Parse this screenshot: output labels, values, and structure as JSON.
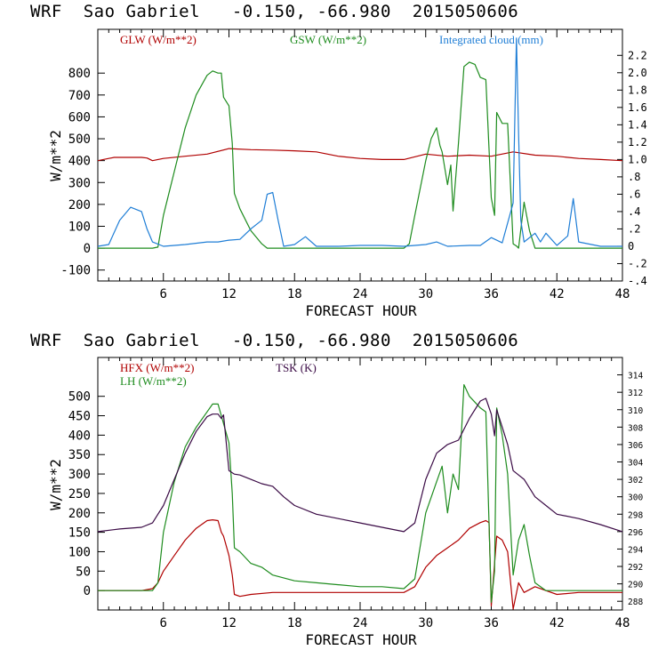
{
  "colors": {
    "red": "#b00000",
    "green": "#1e8c1e",
    "blue": "#1f7ed6",
    "purple": "#3a0a45",
    "axis": "#000000"
  },
  "top_title": "WRF  Sao Gabriel   -0.150, -66.980  2015050606",
  "bottom_title": "WRF  Sao Gabriel   -0.150, -66.980  2015050606",
  "chart_data": [
    {
      "type": "line",
      "title": "WRF  Sao Gabriel   -0.150, -66.980  2015050606",
      "xlabel": "FORECAST HOUR",
      "ylabel": "W/m**2",
      "y2label": "",
      "xlim": [
        0,
        48
      ],
      "ylim": [
        -150,
        1000
      ],
      "y2lim": [
        -0.4,
        2.5
      ],
      "xticks": [
        6,
        12,
        18,
        24,
        30,
        36,
        42,
        48
      ],
      "xtick_labels": [
        "6",
        "12",
        "18",
        "24",
        "30",
        "36",
        "42",
        "48"
      ],
      "yticks": [
        -100,
        0,
        100,
        200,
        300,
        400,
        500,
        600,
        700,
        800
      ],
      "ytick_labels": [
        "-100",
        "0",
        "100",
        "200",
        "300",
        "400",
        "500",
        "600",
        "700",
        "800"
      ],
      "y2ticks": [
        -0.4,
        -0.2,
        0,
        0.2,
        0.4,
        0.6,
        0.8,
        1.0,
        1.2,
        1.4,
        1.6,
        1.8,
        2.0,
        2.2
      ],
      "y2tick_labels": [
        "-.4",
        "-.2",
        "0",
        ".2",
        ".4",
        ".6",
        ".8",
        "1.0",
        "1.2",
        "1.4",
        "1.6",
        "1.8",
        "2.0",
        "2.2"
      ],
      "series": [
        {
          "name": "GLW (W/m**2)",
          "axis": "left",
          "color": "red",
          "x": [
            0,
            0.5,
            1,
            1.5,
            2,
            3,
            4,
            4.5,
            5,
            5.5,
            6,
            8,
            10,
            12,
            14,
            16,
            18,
            20,
            22,
            24,
            26,
            28,
            30,
            32,
            34,
            36,
            38,
            40,
            42,
            44,
            46,
            48
          ],
          "values": [
            400,
            405,
            410,
            415,
            415,
            415,
            415,
            412,
            400,
            405,
            410,
            420,
            430,
            455,
            450,
            448,
            445,
            440,
            420,
            410,
            405,
            405,
            430,
            420,
            425,
            420,
            440,
            425,
            420,
            410,
            405,
            400
          ]
        },
        {
          "name": "GSW (W/m**2)",
          "axis": "left",
          "color": "green",
          "x": [
            0,
            4,
            5,
            5.5,
            6,
            7,
            8,
            9,
            10,
            10.5,
            11,
            11.3,
            11.5,
            12,
            12.3,
            12.5,
            13,
            14,
            15,
            15.5,
            16,
            18,
            20,
            22,
            24,
            26,
            28,
            28.5,
            29,
            30,
            30.5,
            31,
            31.3,
            31.5,
            32,
            32.3,
            32.5,
            33,
            33.5,
            34,
            34.5,
            35,
            35.5,
            36,
            36.3,
            36.5,
            37,
            37.5,
            38,
            38.3,
            38.5,
            39,
            39.5,
            40,
            41,
            42,
            44,
            46,
            48
          ],
          "values": [
            0,
            0,
            0,
            5,
            150,
            350,
            550,
            700,
            790,
            810,
            800,
            800,
            690,
            650,
            480,
            250,
            180,
            80,
            20,
            0,
            0,
            0,
            0,
            0,
            0,
            0,
            0,
            20,
            150,
            400,
            500,
            550,
            470,
            440,
            290,
            380,
            170,
            480,
            830,
            850,
            840,
            780,
            770,
            230,
            150,
            620,
            570,
            570,
            20,
            10,
            0,
            210,
            80,
            0,
            0,
            0,
            0,
            0,
            0
          ]
        },
        {
          "name": "Integrated cloud (mm)",
          "axis": "right",
          "color": "blue",
          "x": [
            0,
            1,
            2,
            3,
            4,
            4.5,
            5,
            6,
            8,
            10,
            11,
            12,
            13,
            14,
            15,
            15.5,
            16,
            16.5,
            17,
            18,
            19,
            20,
            22,
            24,
            26,
            28,
            30,
            31,
            32,
            34,
            35,
            36,
            37,
            38,
            38.3,
            38.5,
            38.7,
            39,
            40,
            40.5,
            41,
            42,
            43,
            43.5,
            44,
            46,
            48
          ],
          "values": [
            0,
            0.02,
            0.3,
            0.45,
            0.4,
            0.2,
            0.05,
            0,
            0.02,
            0.05,
            0.05,
            0.07,
            0.08,
            0.2,
            0.3,
            0.6,
            0.62,
            0.3,
            0,
            0.02,
            0.11,
            0,
            0,
            0.01,
            0.01,
            0,
            0.02,
            0.05,
            0,
            0.01,
            0.01,
            0.1,
            0.04,
            0.5,
            2.4,
            1.3,
            0.3,
            0.05,
            0.15,
            0.05,
            0.15,
            0.01,
            0.12,
            0.55,
            0.05,
            0,
            0
          ]
        }
      ]
    },
    {
      "type": "line",
      "title": "WRF  Sao Gabriel   -0.150, -66.980  2015050606",
      "xlabel": "FORECAST HOUR",
      "ylabel": "W/m**2",
      "xlim": [
        0,
        48
      ],
      "ylim": [
        -50,
        600
      ],
      "y2lim": [
        287,
        316
      ],
      "xticks": [
        6,
        12,
        18,
        24,
        30,
        36,
        42,
        48
      ],
      "xtick_labels": [
        "6",
        "12",
        "18",
        "24",
        "30",
        "36",
        "42",
        "48"
      ],
      "yticks": [
        0,
        50,
        100,
        150,
        200,
        250,
        300,
        350,
        400,
        450,
        500
      ],
      "ytick_labels": [
        "0",
        "50",
        "100",
        "150",
        "200",
        "250",
        "300",
        "350",
        "400",
        "450",
        "500"
      ],
      "y2ticks": [
        288,
        290,
        292,
        294,
        296,
        298,
        300,
        302,
        304,
        306,
        308,
        310,
        312,
        314
      ],
      "y2tick_labels": [
        "288",
        "290",
        "292",
        "294",
        "296",
        "298",
        "300",
        "302",
        "304",
        "306",
        "308",
        "310",
        "312",
        "314"
      ],
      "series": [
        {
          "name": "HFX (W/m**2)",
          "axis": "left",
          "color": "red",
          "x": [
            0,
            2,
            4,
            5,
            5.5,
            6,
            7,
            8,
            9,
            10,
            10.5,
            11,
            11.3,
            11.5,
            12,
            12.3,
            12.5,
            13,
            14,
            16,
            18,
            20,
            22,
            24,
            26,
            28,
            29,
            30,
            31,
            32,
            33,
            34,
            35,
            35.5,
            35.8,
            36,
            36.5,
            37,
            37.5,
            38,
            38.5,
            39,
            40,
            41,
            42,
            44,
            46,
            48
          ],
          "values": [
            0,
            0,
            0,
            5,
            20,
            50,
            90,
            130,
            160,
            180,
            182,
            180,
            150,
            140,
            90,
            40,
            -10,
            -15,
            -10,
            -5,
            -5,
            -5,
            -5,
            -5,
            -5,
            -5,
            10,
            60,
            90,
            110,
            130,
            160,
            175,
            180,
            175,
            -40,
            140,
            130,
            100,
            -50,
            20,
            -5,
            10,
            0,
            -10,
            -5,
            -5,
            -5
          ]
        },
        {
          "name": "LH  (W/m**2)",
          "axis": "left",
          "color": "green",
          "x": [
            0,
            4,
            5,
            5.5,
            6,
            7,
            8,
            9,
            10,
            10.5,
            11,
            11.3,
            11.5,
            12,
            12.3,
            12.5,
            13,
            14,
            15,
            16,
            18,
            20,
            22,
            24,
            26,
            28,
            29,
            30,
            31,
            31.5,
            32,
            32.5,
            33,
            33.5,
            34,
            35,
            35.5,
            36,
            36.3,
            36.5,
            37,
            37.5,
            38,
            38.5,
            39,
            39.5,
            40,
            41,
            42,
            44,
            46,
            48
          ],
          "values": [
            0,
            0,
            0,
            20,
            150,
            280,
            370,
            420,
            460,
            480,
            480,
            450,
            430,
            380,
            250,
            110,
            100,
            70,
            60,
            40,
            25,
            20,
            15,
            10,
            10,
            5,
            30,
            200,
            280,
            320,
            200,
            300,
            260,
            530,
            500,
            470,
            460,
            -30,
            50,
            470,
            400,
            300,
            40,
            130,
            170,
            90,
            20,
            0,
            0,
            0,
            0,
            0
          ]
        },
        {
          "name": "TSK (K)",
          "axis": "right",
          "color": "purple",
          "x": [
            0,
            2,
            4,
            5,
            5.5,
            6,
            7,
            8,
            9,
            10,
            10.5,
            11,
            11.3,
            11.5,
            12,
            12.5,
            13,
            14,
            15,
            16,
            17,
            18,
            20,
            22,
            24,
            26,
            28,
            29,
            30,
            31,
            32,
            33,
            34,
            35,
            35.5,
            36,
            36.3,
            36.5,
            37,
            37.5,
            38,
            38.5,
            39,
            40,
            41,
            42,
            44,
            46,
            48
          ],
          "values": [
            296,
            296.3,
            296.5,
            297,
            298,
            299,
            302,
            305,
            307.5,
            309.2,
            309.5,
            309.5,
            309,
            309.4,
            303,
            302.6,
            302.5,
            302,
            301.5,
            301.2,
            300,
            299,
            298,
            297.5,
            297,
            296.5,
            296,
            297,
            302,
            305,
            306,
            306.5,
            309,
            311,
            311.3,
            309.5,
            307,
            310,
            308,
            306,
            303,
            302.5,
            302,
            300,
            299,
            298,
            297.5,
            296.8,
            296
          ]
        }
      ]
    }
  ]
}
